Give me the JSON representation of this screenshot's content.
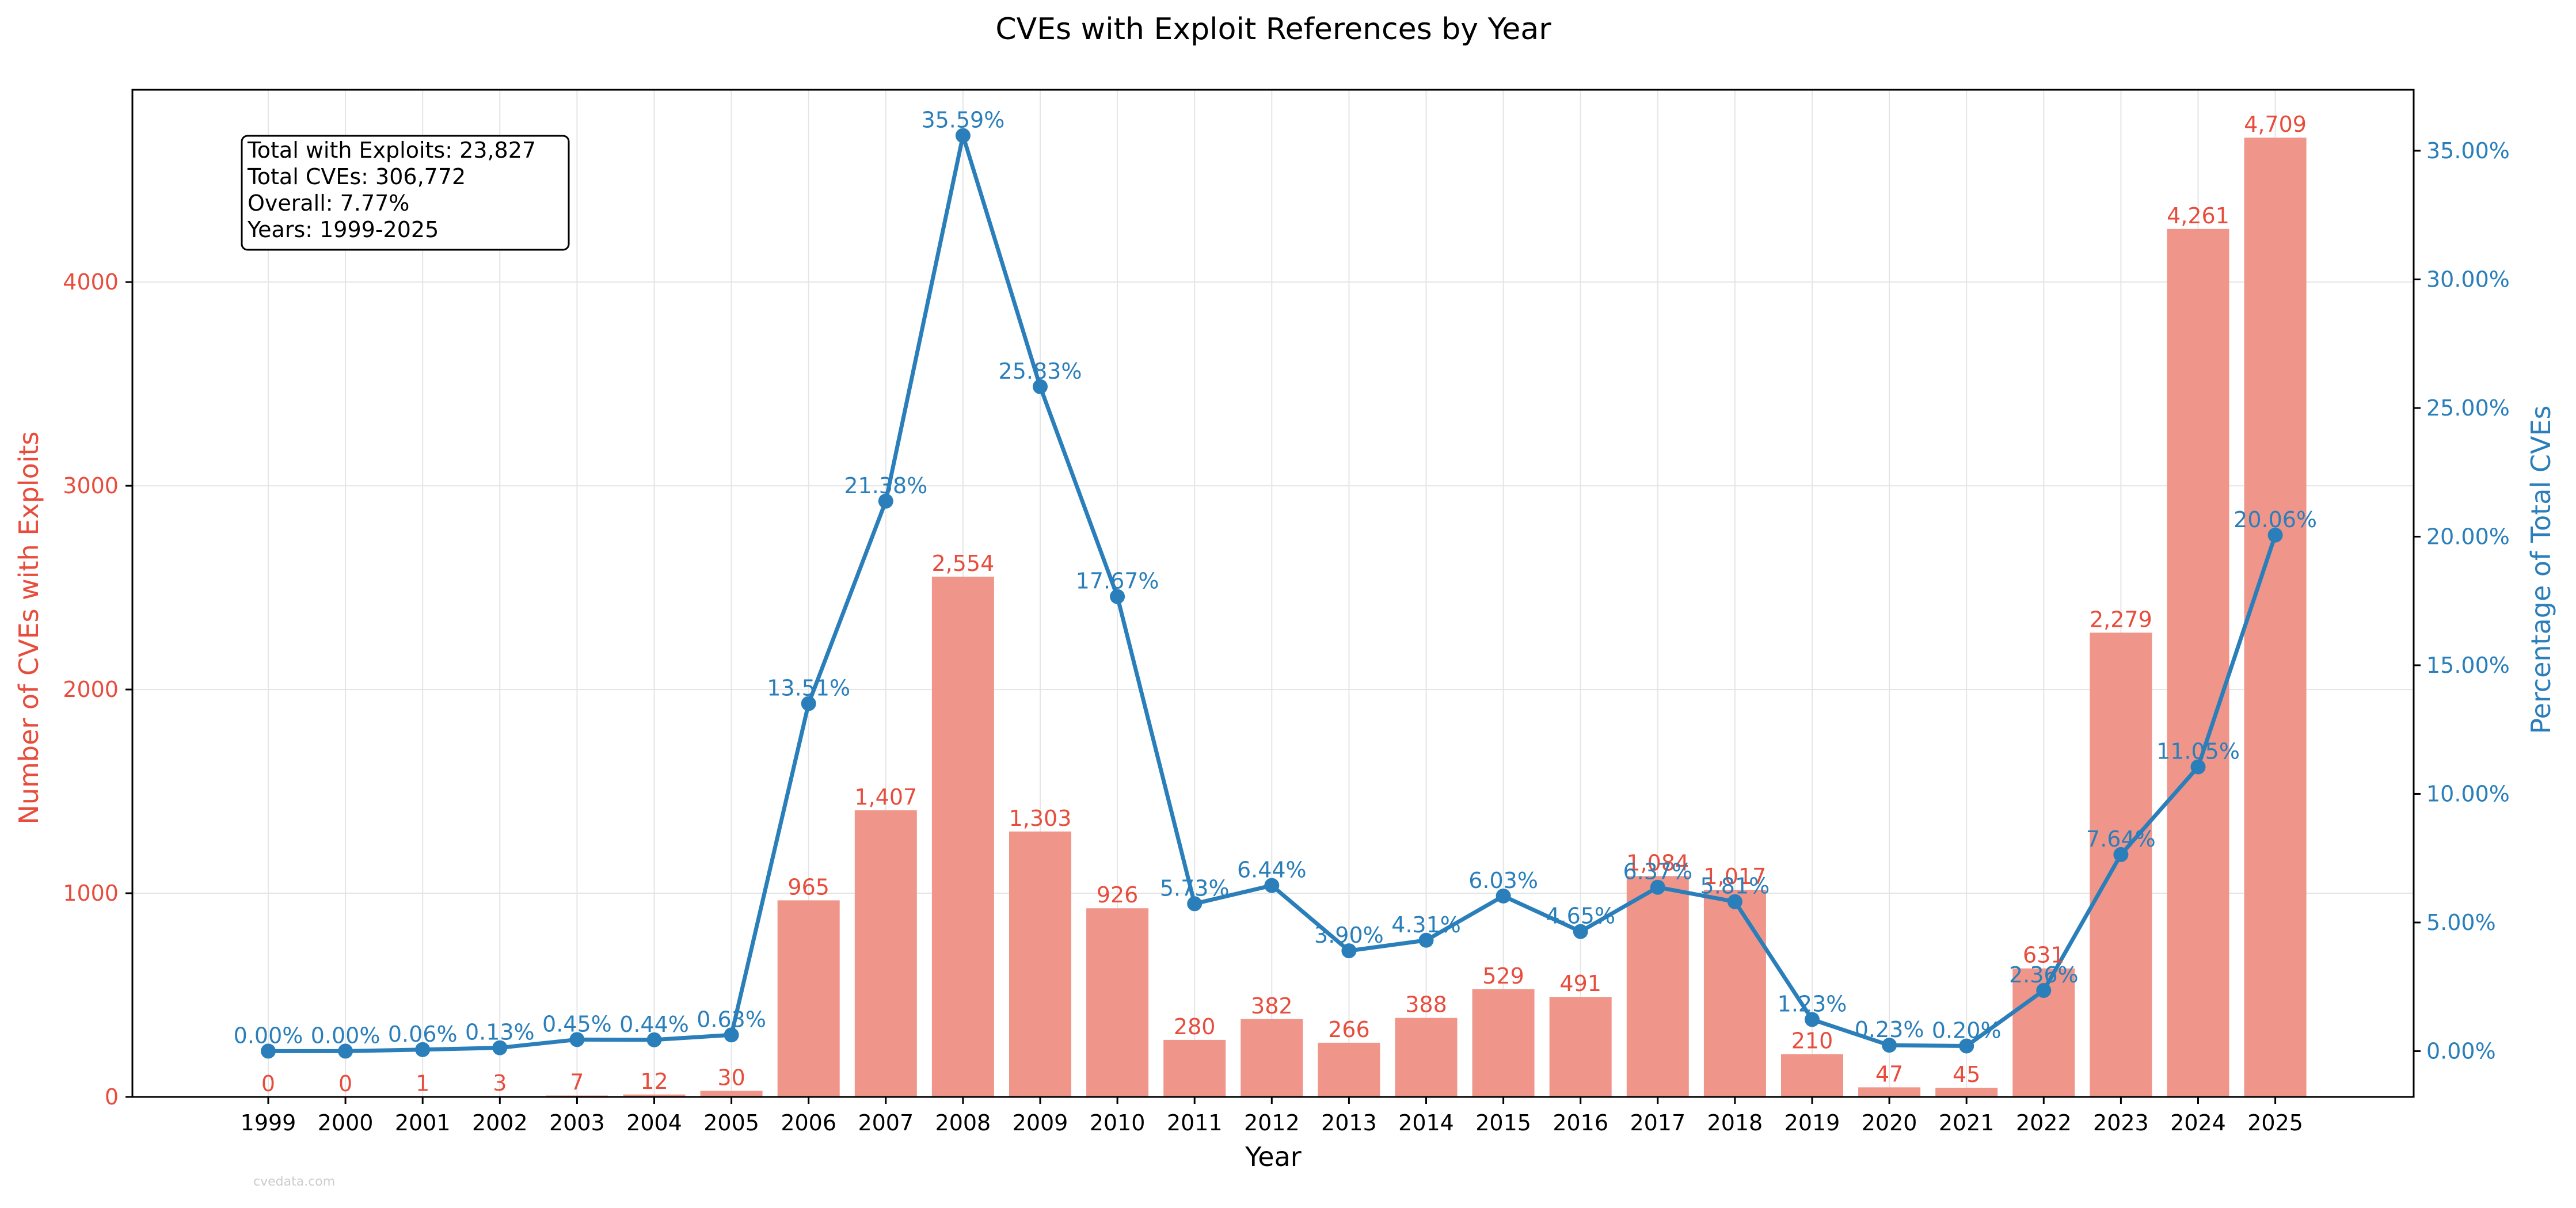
{
  "chart_data": {
    "type": "bar+line",
    "title": "CVEs with Exploit References by Year",
    "xlabel": "Year",
    "ylabel_left": "Number of CVEs with Exploits",
    "ylabel_right": "Percentage of Total CVEs",
    "categories": [
      "1999",
      "2000",
      "2001",
      "2002",
      "2003",
      "2004",
      "2005",
      "2006",
      "2007",
      "2008",
      "2009",
      "2010",
      "2011",
      "2012",
      "2013",
      "2014",
      "2015",
      "2016",
      "2017",
      "2018",
      "2019",
      "2020",
      "2021",
      "2022",
      "2023",
      "2024",
      "2025"
    ],
    "series": [
      {
        "name": "",
        "axis": "left",
        "kind": "bar",
        "values": [
          0,
          0,
          1,
          3,
          7,
          12,
          30,
          965,
          1407,
          2554,
          1303,
          926,
          280,
          382,
          266,
          388,
          529,
          491,
          1084,
          1017,
          210,
          47,
          45,
          631,
          2279,
          4261,
          4709
        ],
        "labels": [
          "0",
          "0",
          "1",
          "3",
          "7",
          "12",
          "30",
          "965",
          "1,407",
          "2,554",
          "1,303",
          "926",
          "280",
          "382",
          "266",
          "388",
          "529",
          "491",
          "1,084",
          "1,017",
          "210",
          "47",
          "45",
          "631",
          "2,279",
          "4,261",
          "4,709"
        ]
      },
      {
        "name": "",
        "axis": "right",
        "kind": "line",
        "values": [
          0.0,
          0.0,
          0.06,
          0.13,
          0.45,
          0.44,
          0.63,
          13.51,
          21.38,
          35.59,
          25.83,
          17.67,
          5.73,
          6.44,
          3.9,
          4.31,
          6.03,
          4.65,
          6.37,
          5.81,
          1.23,
          0.23,
          0.2,
          2.36,
          7.64,
          11.05,
          20.06
        ],
        "labels": [
          "0.00%",
          "0.00%",
          "0.06%",
          "0.13%",
          "0.45%",
          "0.44%",
          "0.63%",
          "13.51%",
          "21.38%",
          "35.59%",
          "25.83%",
          "17.67%",
          "5.73%",
          "6.44%",
          "3.90%",
          "4.31%",
          "6.03%",
          "4.65%",
          "6.37%",
          "5.81%",
          "1.23%",
          "0.23%",
          "0.20%",
          "2.36%",
          "7.64%",
          "11.05%",
          "20.06%"
        ]
      }
    ],
    "ylim_left": [
      0,
      4944
    ],
    "yticks_left": [
      0,
      1000,
      2000,
      3000,
      4000
    ],
    "yticks_left_labels": [
      "0",
      "1000",
      "2000",
      "3000",
      "4000"
    ],
    "ylim_right": [
      -1.78,
      37.37
    ],
    "yticks_right": [
      0,
      5,
      10,
      15,
      20,
      25,
      30,
      35
    ],
    "yticks_right_labels": [
      "0.00%",
      "5.00%",
      "10.00%",
      "15.00%",
      "20.00%",
      "25.00%",
      "30.00%",
      "35.00%"
    ],
    "grid": true,
    "info_box": {
      "lines": [
        "Total with Exploits: 23,827",
        "Total CVEs: 306,772",
        "Overall: 7.77%",
        "Years: 1999-2025"
      ],
      "placement": "top-left"
    },
    "watermark": "cvedata.com",
    "colors": {
      "bar": "#ef958a",
      "bar_label": "#e74c3c",
      "line": "#2a7fba",
      "left_axis": "#e74c3c",
      "right_axis": "#2a7fba",
      "grid": "#e5e5e5"
    }
  }
}
